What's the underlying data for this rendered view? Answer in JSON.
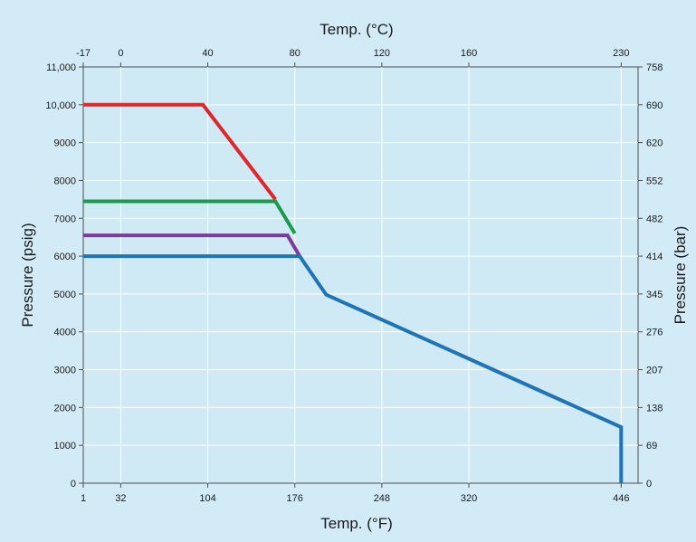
{
  "chart_data": {
    "type": "line",
    "title": "",
    "xlabel_bottom": "Temp. (°F)",
    "xlabel_top": "Temp. (°C)",
    "ylabel_left": "Pressure (psig)",
    "ylabel_right": "Pressure (bar)",
    "xlim": [
      1,
      460
    ],
    "ylim": [
      0,
      11000
    ],
    "grid": true,
    "x_ticks_bottom": [
      {
        "value": 1,
        "label": "1"
      },
      {
        "value": 32,
        "label": "32"
      },
      {
        "value": 104,
        "label": "104"
      },
      {
        "value": 176,
        "label": "176"
      },
      {
        "value": 248,
        "label": "248"
      },
      {
        "value": 320,
        "label": "320"
      },
      {
        "value": 446,
        "label": "446"
      }
    ],
    "x_ticks_top": [
      {
        "value": 1,
        "label": "-17"
      },
      {
        "value": 32,
        "label": "0"
      },
      {
        "value": 104,
        "label": "40"
      },
      {
        "value": 176,
        "label": "80"
      },
      {
        "value": 248,
        "label": "120"
      },
      {
        "value": 320,
        "label": "160"
      },
      {
        "value": 446,
        "label": "230"
      }
    ],
    "y_ticks_left": [
      {
        "value": 0,
        "label": "0"
      },
      {
        "value": 1000,
        "label": "1000"
      },
      {
        "value": 2000,
        "label": "2000"
      },
      {
        "value": 3000,
        "label": "3000"
      },
      {
        "value": 4000,
        "label": "4000"
      },
      {
        "value": 5000,
        "label": "5000"
      },
      {
        "value": 6000,
        "label": "6000"
      },
      {
        "value": 7000,
        "label": "7000"
      },
      {
        "value": 8000,
        "label": "8000"
      },
      {
        "value": 9000,
        "label": "9000"
      },
      {
        "value": 10000,
        "label": "10,000"
      },
      {
        "value": 11000,
        "label": "11,000"
      }
    ],
    "y_ticks_right": [
      {
        "value": 0,
        "label": "0"
      },
      {
        "value": 1000,
        "label": "69"
      },
      {
        "value": 2000,
        "label": "138"
      },
      {
        "value": 3000,
        "label": "207"
      },
      {
        "value": 4000,
        "label": "276"
      },
      {
        "value": 5000,
        "label": "345"
      },
      {
        "value": 6000,
        "label": "414"
      },
      {
        "value": 7000,
        "label": "482"
      },
      {
        "value": 8000,
        "label": "552"
      },
      {
        "value": 9000,
        "label": "620"
      },
      {
        "value": 10000,
        "label": "690"
      },
      {
        "value": 11000,
        "label": "758"
      }
    ],
    "series": [
      {
        "color": "#e0262b",
        "x": [
          1,
          100,
          160
        ],
        "y": [
          10000,
          10000,
          7500
        ]
      },
      {
        "color": "#1c9a4c",
        "x": [
          1,
          160,
          176
        ],
        "y": [
          7450,
          7450,
          6600
        ]
      },
      {
        "color": "#7e3a9a",
        "x": [
          1,
          170,
          180
        ],
        "y": [
          6550,
          6550,
          6000
        ]
      },
      {
        "color": "#1f73b7",
        "x": [
          1,
          180,
          202,
          446,
          446
        ],
        "y": [
          6000,
          6000,
          4980,
          1480,
          0
        ]
      }
    ]
  }
}
